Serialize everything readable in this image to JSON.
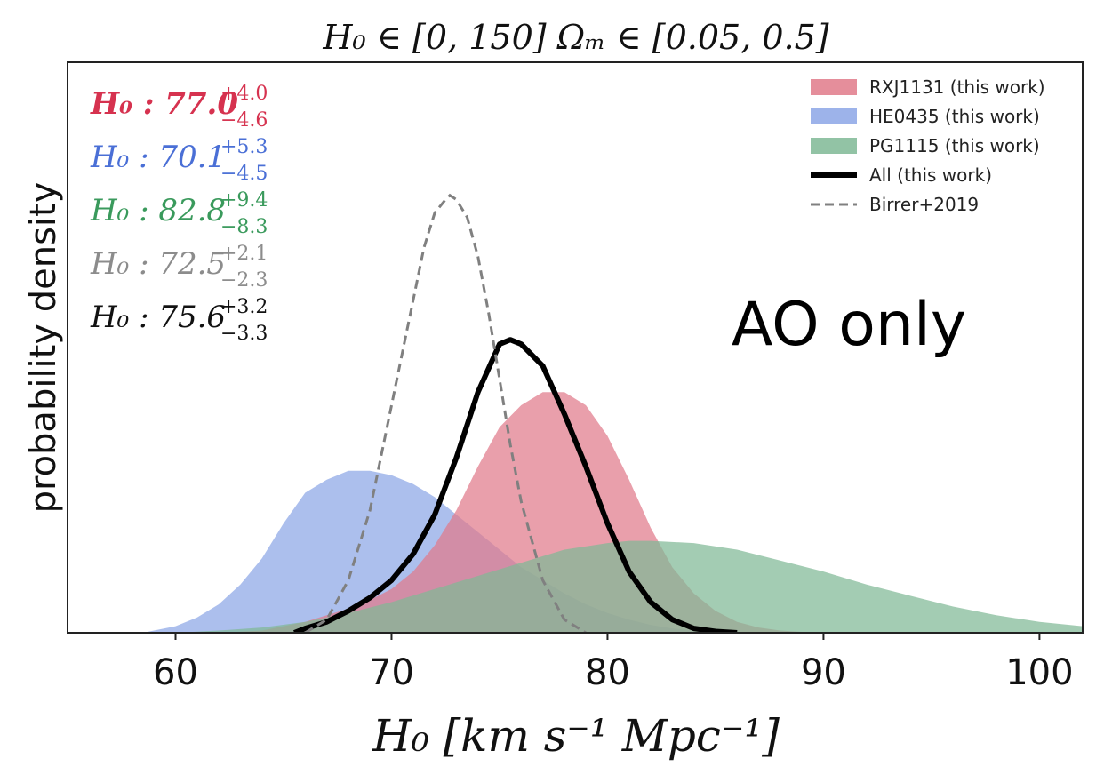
{
  "chart_data": {
    "type": "area",
    "title": "H₀ ∈ [0, 150]   Ωₘ ∈ [0.05, 0.5]",
    "xlabel": "H₀ [km s⁻¹ Mpc⁻¹]",
    "ylabel": "probability density",
    "xlim": [
      55,
      102
    ],
    "ylim": [
      0,
      1.04
    ],
    "x_ticks": [
      60,
      70,
      80,
      90,
      100
    ],
    "y_ticks_shown": false,
    "grid": false,
    "legend_position": "top-right",
    "annotation": "AO only",
    "series": [
      {
        "name": "RXJ1131 (this work)",
        "style": "filled",
        "color": "#e07a8a",
        "x": [
          62,
          64,
          66,
          67,
          68,
          69,
          70,
          71,
          72,
          73,
          74,
          75,
          76,
          77,
          78,
          79,
          80,
          81,
          82,
          83,
          84,
          85,
          86,
          87,
          88,
          89,
          90
        ],
        "y": [
          0.0,
          0.005,
          0.025,
          0.04,
          0.055,
          0.075,
          0.1,
          0.14,
          0.2,
          0.28,
          0.38,
          0.47,
          0.52,
          0.55,
          0.55,
          0.52,
          0.45,
          0.35,
          0.24,
          0.15,
          0.09,
          0.05,
          0.025,
          0.012,
          0.005,
          0.002,
          0.0
        ]
      },
      {
        "name": "HE0435 (this work)",
        "style": "filled",
        "color": "#8ca6e6",
        "x": [
          58.5,
          59,
          60,
          61,
          62,
          63,
          64,
          65,
          66,
          67,
          68,
          69,
          70,
          71,
          72,
          73,
          74,
          75,
          76,
          77,
          78,
          79,
          80,
          81,
          82,
          83,
          84,
          85,
          86
        ],
        "y": [
          0.0,
          0.005,
          0.015,
          0.035,
          0.065,
          0.11,
          0.17,
          0.25,
          0.32,
          0.35,
          0.37,
          0.37,
          0.36,
          0.34,
          0.31,
          0.27,
          0.23,
          0.19,
          0.15,
          0.12,
          0.09,
          0.065,
          0.045,
          0.03,
          0.018,
          0.01,
          0.005,
          0.002,
          0.0
        ]
      },
      {
        "name": "PG1115 (this work)",
        "style": "filled",
        "color": "#7fb895",
        "x": [
          60,
          62,
          64,
          66,
          68,
          70,
          72,
          74,
          76,
          78,
          80,
          81,
          82,
          84,
          86,
          88,
          90,
          92,
          94,
          96,
          98,
          100,
          102
        ],
        "y": [
          0.0,
          0.005,
          0.012,
          0.025,
          0.045,
          0.07,
          0.1,
          0.13,
          0.16,
          0.19,
          0.205,
          0.21,
          0.21,
          0.205,
          0.19,
          0.165,
          0.14,
          0.11,
          0.085,
          0.06,
          0.04,
          0.025,
          0.015
        ]
      },
      {
        "name": "All (this work)",
        "style": "solid-line",
        "color": "#000000",
        "x": [
          65.5,
          66,
          67,
          68,
          69,
          70,
          71,
          72,
          73,
          74,
          75,
          75.5,
          76,
          77,
          78,
          79,
          80,
          81,
          82,
          83,
          84,
          85,
          86
        ],
        "y": [
          0.0,
          0.01,
          0.025,
          0.05,
          0.08,
          0.12,
          0.18,
          0.27,
          0.4,
          0.55,
          0.66,
          0.67,
          0.66,
          0.61,
          0.5,
          0.38,
          0.25,
          0.14,
          0.07,
          0.03,
          0.01,
          0.003,
          0.0
        ]
      },
      {
        "name": "Birrer+2019",
        "style": "dashed-line",
        "color": "#808080",
        "x": [
          66,
          67,
          68,
          69,
          70,
          70.5,
          71,
          71.5,
          72,
          72.5,
          72.7,
          73,
          73.5,
          74,
          74.5,
          75,
          75.5,
          76,
          77,
          78,
          79
        ],
        "y": [
          0.0,
          0.03,
          0.12,
          0.28,
          0.52,
          0.64,
          0.76,
          0.88,
          0.96,
          0.99,
          1.0,
          0.99,
          0.95,
          0.86,
          0.73,
          0.58,
          0.43,
          0.3,
          0.12,
          0.03,
          0.0
        ]
      }
    ],
    "estimates": [
      {
        "label": "H₀ : 77.0",
        "sup": "+4.0",
        "sub": "−4.6",
        "color": "#d6324f",
        "bold": true
      },
      {
        "label": "H₀ : 70.1",
        "sup": "+5.3",
        "sub": "−4.5",
        "color": "#4a6fd6",
        "bold": false
      },
      {
        "label": "H₀ : 82.8",
        "sup": "+9.4",
        "sub": "−8.3",
        "color": "#3a9a5c",
        "bold": false
      },
      {
        "label": "H₀ : 72.5",
        "sup": "+2.1",
        "sub": "−2.3",
        "color": "#8c8c8c",
        "bold": false
      },
      {
        "label": "H₀ : 75.6",
        "sup": "+3.2",
        "sub": "−3.3",
        "color": "#111111",
        "bold": false
      }
    ]
  }
}
